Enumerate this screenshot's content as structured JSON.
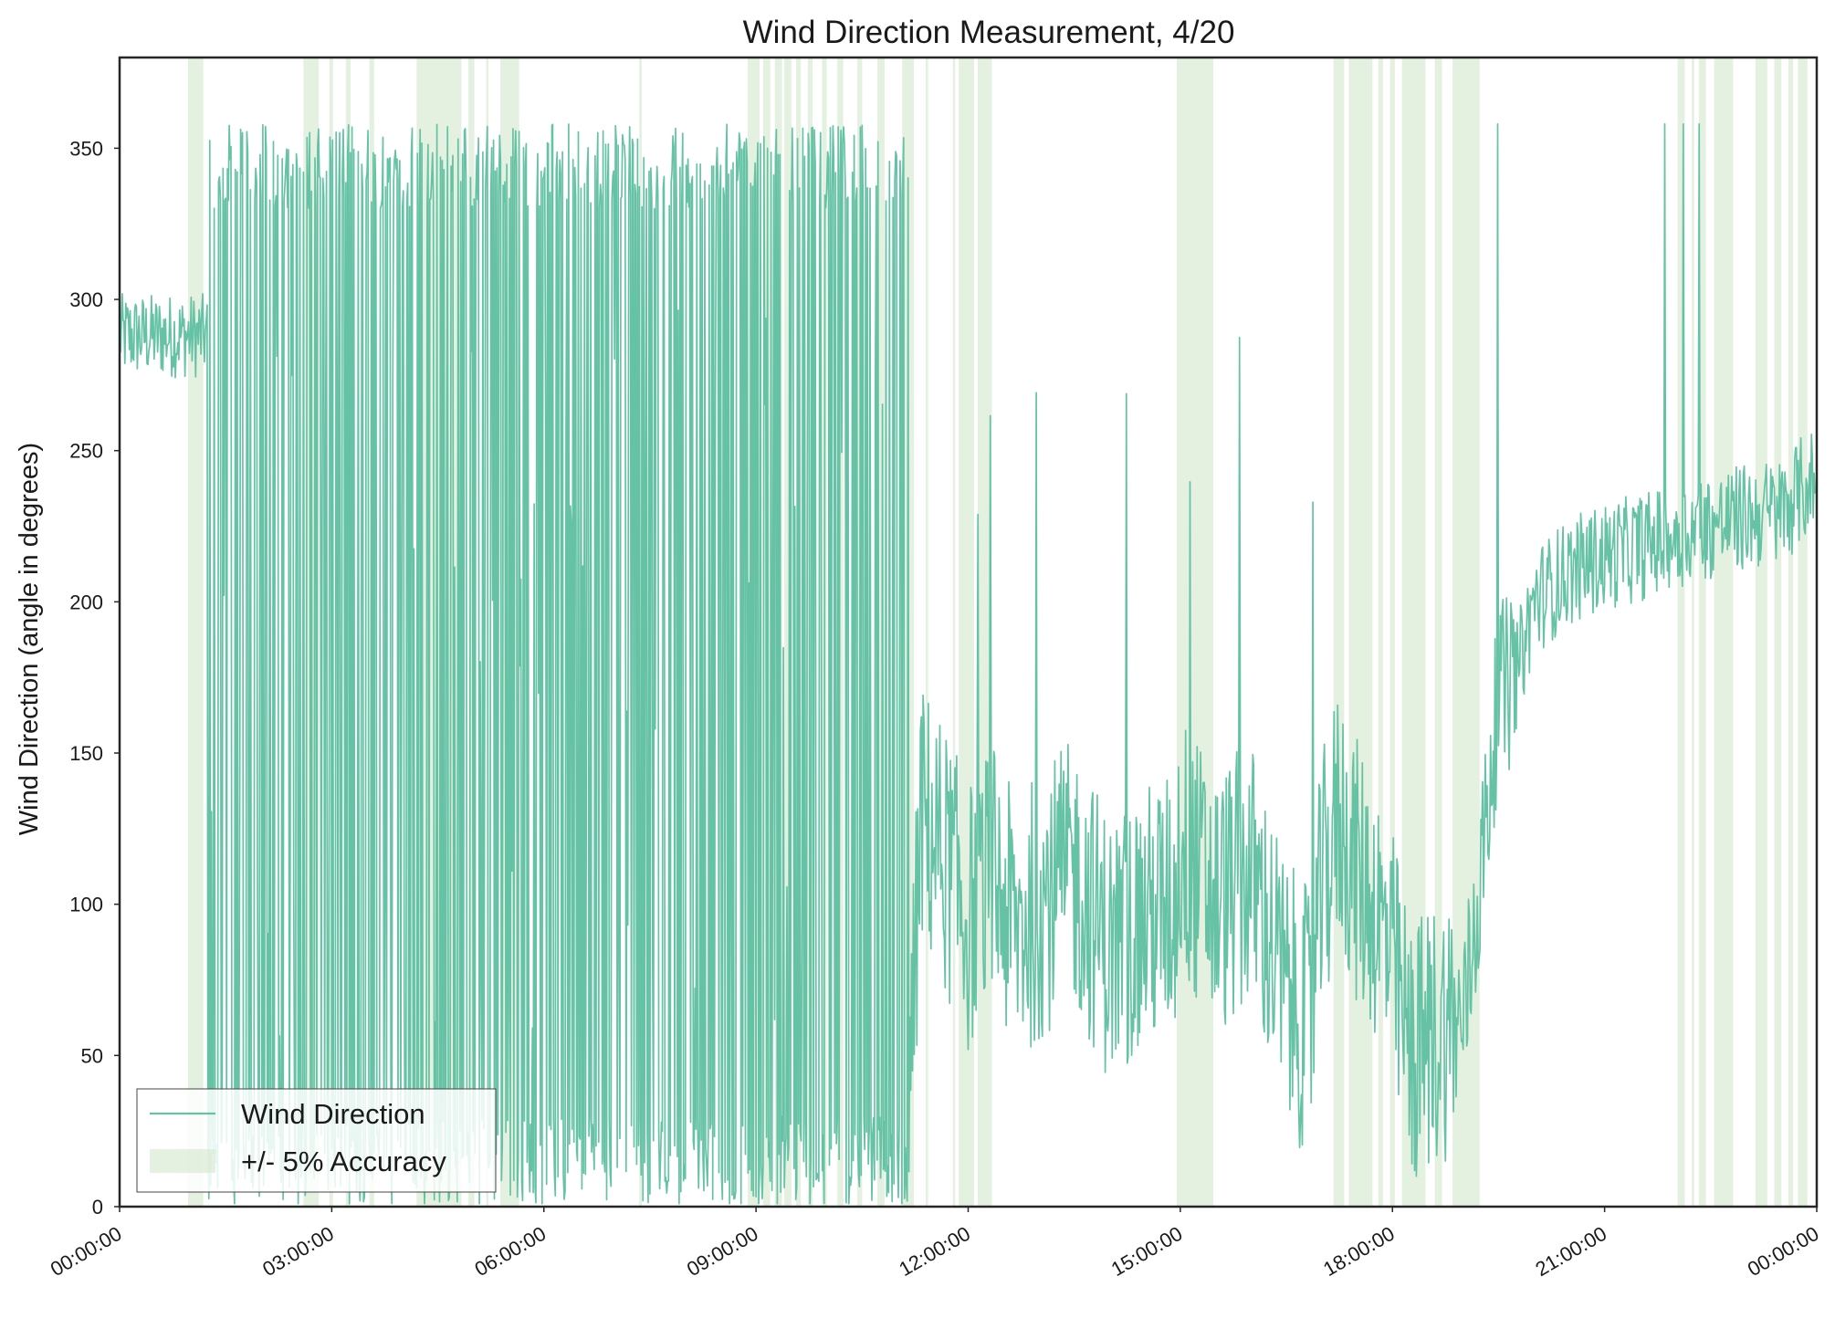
{
  "chart_data": {
    "type": "line",
    "title": "Wind Direction Measurement, 4/20",
    "xlabel": "",
    "ylabel": "Wind Direction (angle in degrees)",
    "xlim": [
      "00:00:00",
      "24:00:00"
    ],
    "ylim": [
      0,
      380
    ],
    "x_ticks": [
      "00:00:00",
      "03:00:00",
      "06:00:00",
      "09:00:00",
      "12:00:00",
      "15:00:00",
      "18:00:00",
      "21:00:00",
      "00:00:00"
    ],
    "y_ticks": [
      0,
      50,
      100,
      150,
      200,
      250,
      300,
      350
    ],
    "grid": false,
    "legend_position": "lower-left",
    "legend": [
      {
        "label": "Wind Direction",
        "kind": "line",
        "color": "#66c2a5"
      },
      {
        "label": "+/- 5% Accuracy",
        "kind": "patch",
        "color": "#d9ead3"
      }
    ],
    "line_color": "#66c2a5",
    "band_color": "#d9ead3",
    "bands": [
      [
        "00:58:00",
        "01:11:00"
      ],
      [
        "02:36:00",
        "02:49:00"
      ],
      [
        "02:58:00",
        "03:01:00"
      ],
      [
        "03:12:00",
        "03:16:00"
      ],
      [
        "03:32:00",
        "03:36:00"
      ],
      [
        "04:12:00",
        "04:50:00"
      ],
      [
        "04:56:00",
        "05:01:00"
      ],
      [
        "05:11:00",
        "05:13:00"
      ],
      [
        "05:23:00",
        "05:39:00"
      ],
      [
        "07:21:00",
        "07:23:00"
      ],
      [
        "08:53:00",
        "09:03:00"
      ],
      [
        "09:06:00",
        "09:12:00"
      ],
      [
        "09:16:00",
        "09:22:00"
      ],
      [
        "09:24:00",
        "09:30:00"
      ],
      [
        "09:34:00",
        "09:38:00"
      ],
      [
        "09:44:00",
        "09:48:00"
      ],
      [
        "09:56:00",
        "10:00:00"
      ],
      [
        "10:09:00",
        "10:14:00"
      ],
      [
        "10:26:00",
        "10:30:00"
      ],
      [
        "10:43:00",
        "10:49:00"
      ],
      [
        "11:04:00",
        "11:14:00"
      ],
      [
        "11:24:00",
        "11:26:00"
      ],
      [
        "11:47:00",
        "11:49:00"
      ],
      [
        "11:52:00",
        "12:05:00"
      ],
      [
        "12:08:00",
        "12:20:00"
      ],
      [
        "14:57:00",
        "15:28:00"
      ],
      [
        "17:10:00",
        "17:19:00"
      ],
      [
        "17:23:00",
        "17:43:00"
      ],
      [
        "17:48:00",
        "17:52:00"
      ],
      [
        "17:58:00",
        "18:02:00"
      ],
      [
        "18:08:00",
        "18:28:00"
      ],
      [
        "18:36:00",
        "18:42:00"
      ],
      [
        "18:51:00",
        "19:14:00"
      ],
      [
        "22:02:00",
        "22:08:00"
      ],
      [
        "22:14:00",
        "22:16:00"
      ],
      [
        "22:20:00",
        "22:26:00"
      ],
      [
        "22:33:00",
        "22:49:00"
      ],
      [
        "23:08:00",
        "23:18:00"
      ],
      [
        "23:24:00",
        "23:30:00"
      ],
      [
        "23:36:00",
        "23:40:00"
      ],
      [
        "23:44:00",
        "23:52:00"
      ]
    ],
    "series": [
      {
        "name": "Wind Direction",
        "x": [
          "00:00:00",
          "00:15:00",
          "00:30:00",
          "00:45:00",
          "00:55:00",
          "01:05:00",
          "01:10:00",
          "01:15:00",
          "01:20:00",
          "01:30:00",
          "02:00:00",
          "02:30:00",
          "03:00:00",
          "03:30:00",
          "04:00:00",
          "04:30:00",
          "05:00:00",
          "05:30:00",
          "06:00:00",
          "06:30:00",
          "07:00:00",
          "07:30:00",
          "08:00:00",
          "08:30:00",
          "09:00:00",
          "09:30:00",
          "10:00:00",
          "10:30:00",
          "10:50:00",
          "11:00:00",
          "11:10:00",
          "11:20:00",
          "11:40:00",
          "12:00:00",
          "12:20:00",
          "12:40:00",
          "13:00:00",
          "13:30:00",
          "14:00:00",
          "14:30:00",
          "14:55:00",
          "15:00:00",
          "15:30:00",
          "16:00:00",
          "16:30:00",
          "16:50:00",
          "17:00:00",
          "17:15:00",
          "17:30:00",
          "17:45:00",
          "18:00:00",
          "18:15:00",
          "18:30:00",
          "18:45:00",
          "19:00:00",
          "19:15:00",
          "19:30:00",
          "19:45:00",
          "20:00:00",
          "20:30:00",
          "21:00:00",
          "21:30:00",
          "22:00:00",
          "22:30:00",
          "23:00:00",
          "23:30:00",
          "23:55:00"
        ],
        "y": [
          290,
          292,
          286,
          285,
          290,
          285,
          280,
          300,
          300,
          300,
          300,
          300,
          300,
          300,
          300,
          300,
          300,
          300,
          300,
          300,
          300,
          300,
          300,
          300,
          300,
          300,
          300,
          300,
          300,
          25,
          30,
          130,
          115,
          95,
          110,
          90,
          100,
          110,
          85,
          95,
          100,
          120,
          100,
          110,
          70,
          60,
          105,
          130,
          110,
          100,
          80,
          50,
          55,
          60,
          60,
          110,
          170,
          175,
          200,
          210,
          215,
          218,
          222,
          225,
          228,
          230,
          240
        ]
      }
    ],
    "annotations_note": []
  }
}
